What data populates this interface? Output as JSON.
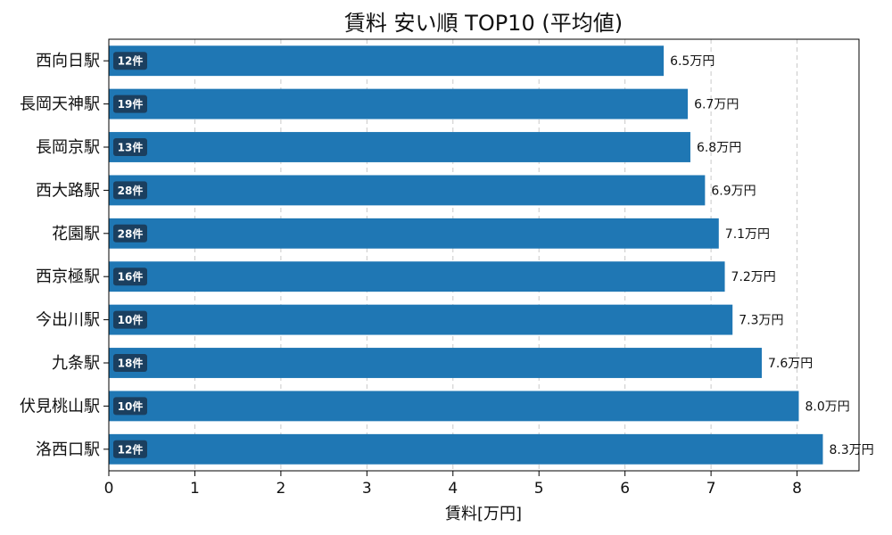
{
  "chart_data": {
    "type": "bar",
    "orientation": "horizontal",
    "title": "賃料 安い順 TOP10 (平均値)",
    "xlabel": "賃料[万円]",
    "ylabel": "",
    "xlim": [
      0,
      8.72
    ],
    "xticks": [
      0,
      1,
      2,
      3,
      4,
      5,
      6,
      7,
      8
    ],
    "grid": "x-dashed",
    "color": "#1f77b4",
    "badge_color": "#1b3f5f",
    "categories": [
      "西向日駅",
      "長岡天神駅",
      "長岡京駅",
      "西大路駅",
      "花園駅",
      "西京極駅",
      "今出川駅",
      "九条駅",
      "伏見桃山駅",
      "洛西口駅"
    ],
    "values": [
      6.45,
      6.73,
      6.76,
      6.93,
      7.09,
      7.16,
      7.25,
      7.59,
      8.02,
      8.3
    ],
    "value_labels": [
      "6.5万円",
      "6.7万円",
      "6.8万円",
      "6.9万円",
      "7.1万円",
      "7.2万円",
      "7.3万円",
      "7.6万円",
      "8.0万円",
      "8.3万円"
    ],
    "counts": [
      "12件",
      "19件",
      "13件",
      "28件",
      "28件",
      "16件",
      "10件",
      "18件",
      "10件",
      "12件"
    ]
  }
}
